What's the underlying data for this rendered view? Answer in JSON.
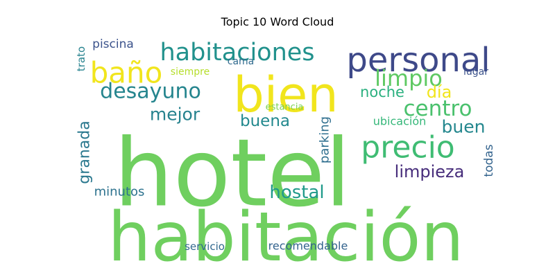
{
  "chart_data": {
    "type": "wordcloud",
    "title": "Topic 10 Word Cloud",
    "words": [
      {
        "text": "hotel",
        "color": "#6fcf5f"
      },
      {
        "text": "habitación",
        "color": "#6fcf5f"
      },
      {
        "text": "bien",
        "color": "#f1e51d"
      },
      {
        "text": "personal",
        "color": "#3e4989"
      },
      {
        "text": "precio",
        "color": "#3fbc73"
      },
      {
        "text": "habitaciones",
        "color": "#21918c"
      },
      {
        "text": "baño",
        "color": "#f1e51d"
      },
      {
        "text": "limpio",
        "color": "#5ec962"
      },
      {
        "text": "desayuno",
        "color": "#25858e"
      },
      {
        "text": "centro",
        "color": "#4ac16d"
      },
      {
        "text": "noche",
        "color": "#2ab07f"
      },
      {
        "text": "día",
        "color": "#f1e51d"
      },
      {
        "text": "mejor",
        "color": "#26828e"
      },
      {
        "text": "buena",
        "color": "#23898e"
      },
      {
        "text": "buen",
        "color": "#24878e"
      },
      {
        "text": "limpieza",
        "color": "#472d7b"
      },
      {
        "text": "hostal",
        "color": "#1f9a8a"
      },
      {
        "text": "granada",
        "color": "#2a788e"
      },
      {
        "text": "parking",
        "color": "#2e6e8e"
      },
      {
        "text": "ubicación",
        "color": "#35b779"
      },
      {
        "text": "minutos",
        "color": "#2c728e"
      },
      {
        "text": "todas",
        "color": "#33638d"
      },
      {
        "text": "piscina",
        "color": "#3b528b"
      },
      {
        "text": "trato",
        "color": "#26828e"
      },
      {
        "text": "cama",
        "color": "#306a8e"
      },
      {
        "text": "siempre",
        "color": "#b5de2b"
      },
      {
        "text": "lugar",
        "color": "#3b528b"
      },
      {
        "text": "estancia",
        "color": "#7ad151"
      },
      {
        "text": "servicio",
        "color": "#31688e"
      },
      {
        "text": "recomendable",
        "color": "#33638d"
      }
    ]
  }
}
